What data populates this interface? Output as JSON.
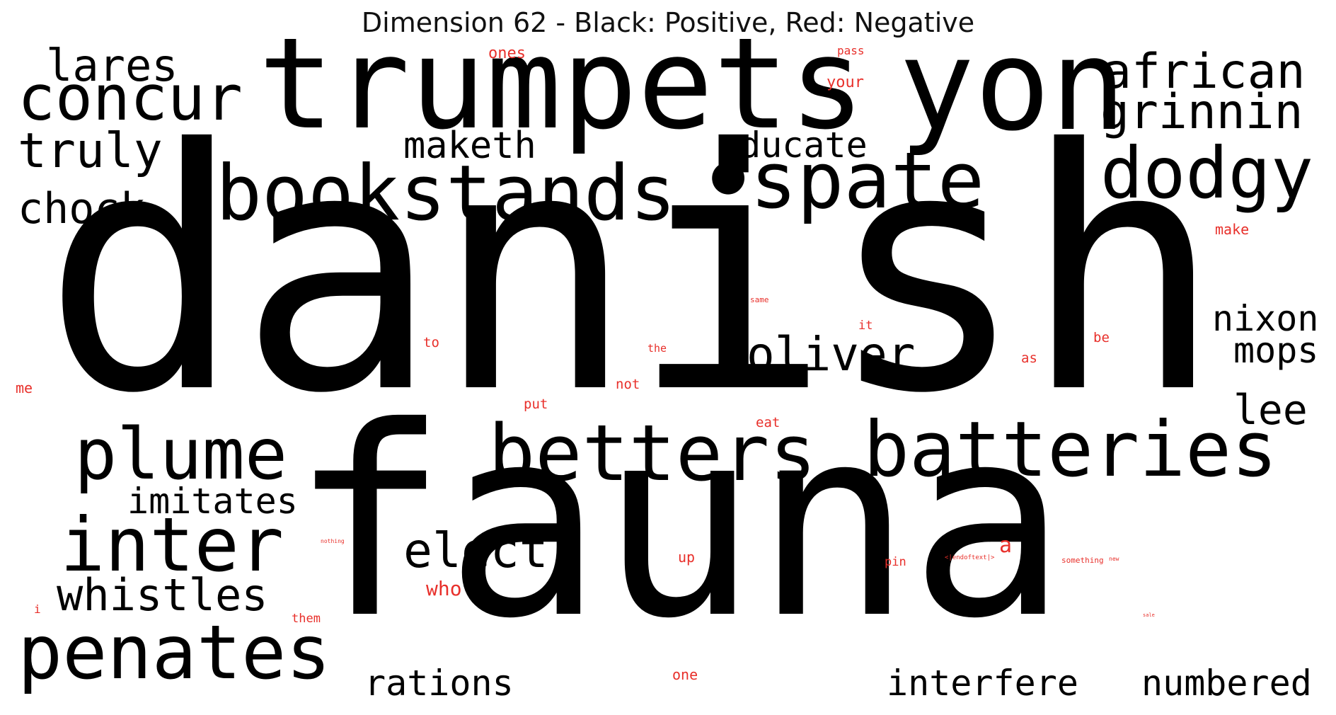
{
  "title": "Dimension 62 - Black: Positive, Red: Negative",
  "colors": {
    "positive": "#000000",
    "negative": "#e8302b",
    "background": "#ffffff"
  },
  "words": [
    {
      "text": "danish",
      "sign": "positive"
    },
    {
      "text": "fauna",
      "sign": "positive"
    },
    {
      "text": "trumpets",
      "sign": "positive"
    },
    {
      "text": "yon",
      "sign": "positive"
    },
    {
      "text": "bookstands",
      "sign": "positive"
    },
    {
      "text": "spate",
      "sign": "positive"
    },
    {
      "text": "betters",
      "sign": "positive"
    },
    {
      "text": "batteries",
      "sign": "positive"
    },
    {
      "text": "inter",
      "sign": "positive"
    },
    {
      "text": "penates",
      "sign": "positive"
    },
    {
      "text": "plume",
      "sign": "positive"
    },
    {
      "text": "concur",
      "sign": "positive"
    },
    {
      "text": "dodgy",
      "sign": "positive"
    },
    {
      "text": "african",
      "sign": "positive"
    },
    {
      "text": "grinnin",
      "sign": "positive"
    },
    {
      "text": "oliver",
      "sign": "positive"
    },
    {
      "text": "truly",
      "sign": "positive"
    },
    {
      "text": "lares",
      "sign": "positive"
    },
    {
      "text": "chock",
      "sign": "positive"
    },
    {
      "text": "elect",
      "sign": "positive"
    },
    {
      "text": "whistles",
      "sign": "positive"
    },
    {
      "text": "imitates",
      "sign": "positive"
    },
    {
      "text": "maketh",
      "sign": "positive"
    },
    {
      "text": "educate",
      "sign": "positive"
    },
    {
      "text": "nixon",
      "sign": "positive"
    },
    {
      "text": "mops",
      "sign": "positive"
    },
    {
      "text": "lee",
      "sign": "positive"
    },
    {
      "text": "rations",
      "sign": "positive"
    },
    {
      "text": "interfere",
      "sign": "positive"
    },
    {
      "text": "numbered",
      "sign": "positive"
    },
    {
      "text": "•",
      "sign": "positive"
    },
    {
      "text": "ones",
      "sign": "negative"
    },
    {
      "text": "pass",
      "sign": "negative"
    },
    {
      "text": "your",
      "sign": "negative"
    },
    {
      "text": "make",
      "sign": "negative"
    },
    {
      "text": "same",
      "sign": "negative"
    },
    {
      "text": "it",
      "sign": "negative"
    },
    {
      "text": "be",
      "sign": "negative"
    },
    {
      "text": "to",
      "sign": "negative"
    },
    {
      "text": "the",
      "sign": "negative"
    },
    {
      "text": "as",
      "sign": "negative"
    },
    {
      "text": "me",
      "sign": "negative"
    },
    {
      "text": "not",
      "sign": "negative"
    },
    {
      "text": "put",
      "sign": "negative"
    },
    {
      "text": "eat",
      "sign": "negative"
    },
    {
      "text": "nothing",
      "sign": "negative"
    },
    {
      "text": "a",
      "sign": "negative"
    },
    {
      "text": "up",
      "sign": "negative"
    },
    {
      "text": "pin",
      "sign": "negative"
    },
    {
      "text": "<|endoftext|>",
      "sign": "negative"
    },
    {
      "text": "something",
      "sign": "negative"
    },
    {
      "text": "new",
      "sign": "negative"
    },
    {
      "text": "who",
      "sign": "negative"
    },
    {
      "text": "i",
      "sign": "negative"
    },
    {
      "text": "them",
      "sign": "negative"
    },
    {
      "text": "sale",
      "sign": "negative"
    },
    {
      "text": "one",
      "sign": "negative"
    }
  ]
}
